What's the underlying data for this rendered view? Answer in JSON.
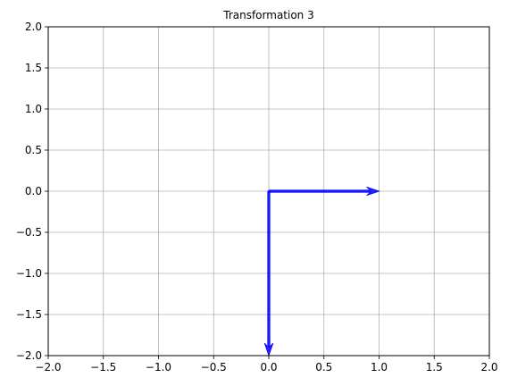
{
  "chart_data": {
    "type": "quiver",
    "title": "Transformation 3",
    "xlabel": "",
    "ylabel": "",
    "xlim": [
      -2.0,
      2.0
    ],
    "ylim": [
      -2.0,
      2.0
    ],
    "xticks": [
      -2.0,
      -1.5,
      -1.0,
      -0.5,
      0.0,
      0.5,
      1.0,
      1.5,
      2.0
    ],
    "yticks": [
      -2.0,
      -1.5,
      -1.0,
      -0.5,
      0.0,
      0.5,
      1.0,
      1.5,
      2.0
    ],
    "xtick_labels": [
      "−2.0",
      "−1.5",
      "−1.0",
      "−0.5",
      "0.0",
      "0.5",
      "1.0",
      "1.5",
      "2.0"
    ],
    "ytick_labels": [
      "−2.0",
      "−1.5",
      "−1.0",
      "−0.5",
      "0.0",
      "0.5",
      "1.0",
      "1.5",
      "2.0"
    ],
    "grid": true,
    "vectors": [
      {
        "origin": [
          0,
          0
        ],
        "components": [
          1,
          0
        ],
        "color": "#0000ff"
      },
      {
        "origin": [
          0,
          0
        ],
        "components": [
          0,
          -2
        ],
        "color": "#0000ff"
      }
    ]
  }
}
